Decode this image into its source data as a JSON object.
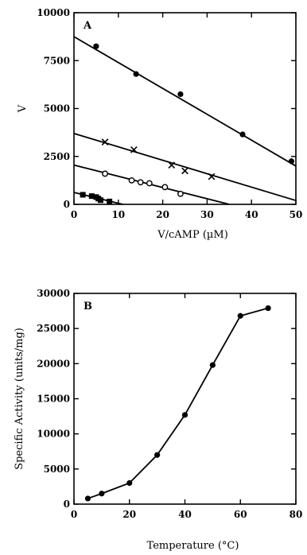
{
  "chart_data": [
    {
      "type": "scatter",
      "panel_label": "A",
      "xlabel": "V/cAMP (µM)",
      "ylabel": "V",
      "xlim": [
        0,
        50
      ],
      "ylim": [
        0,
        10000
      ],
      "xticks": [
        0,
        10,
        20,
        30,
        40,
        50
      ],
      "yticks": [
        0,
        2500,
        5000,
        7500,
        10000
      ],
      "series": [
        {
          "marker": "circle-filled",
          "points": [
            [
              5,
              8250
            ],
            [
              14,
              6800
            ],
            [
              24,
              5750
            ],
            [
              38,
              3650
            ],
            [
              49,
              2250
            ]
          ],
          "fit": {
            "x0": 0,
            "y0": 8750,
            "x1": 50,
            "y1": 2000
          }
        },
        {
          "marker": "x",
          "points": [
            [
              7,
              3250
            ],
            [
              13.5,
              2850
            ],
            [
              22,
              2050
            ],
            [
              25,
              1750
            ],
            [
              31,
              1450
            ]
          ],
          "fit": {
            "x0": 0,
            "y0": 3700,
            "x1": 50,
            "y1": 200
          }
        },
        {
          "marker": "circle-open",
          "points": [
            [
              7,
              1600
            ],
            [
              13,
              1250
            ],
            [
              15,
              1150
            ],
            [
              17,
              1100
            ],
            [
              20.5,
              900
            ],
            [
              24,
              550
            ]
          ],
          "fit": {
            "x0": 0,
            "y0": 2050,
            "x1": 35,
            "y1": 0
          }
        },
        {
          "marker": "square-filled",
          "points": [
            [
              2,
              500
            ],
            [
              4,
              430
            ],
            [
              5,
              380
            ],
            [
              5.5,
              300
            ],
            [
              6,
              220
            ],
            [
              8,
              150
            ]
          ],
          "fit": {
            "x0": 0,
            "y0": 620,
            "x1": 11,
            "y1": 0
          }
        }
      ]
    },
    {
      "type": "line",
      "panel_label": "B",
      "xlabel": "Temperature   (°C)",
      "ylabel": "Specific  Activity  (units/mg)",
      "xlim": [
        0,
        80
      ],
      "ylim": [
        0,
        30000
      ],
      "xticks": [
        0,
        20,
        40,
        60,
        80
      ],
      "yticks": [
        0,
        5000,
        10000,
        15000,
        20000,
        25000,
        30000
      ],
      "marker": "circle-filled",
      "x": [
        5,
        10,
        20,
        30,
        40,
        50,
        60,
        70
      ],
      "y": [
        800,
        1500,
        3000,
        7000,
        12700,
        19800,
        26800,
        27900
      ]
    }
  ]
}
